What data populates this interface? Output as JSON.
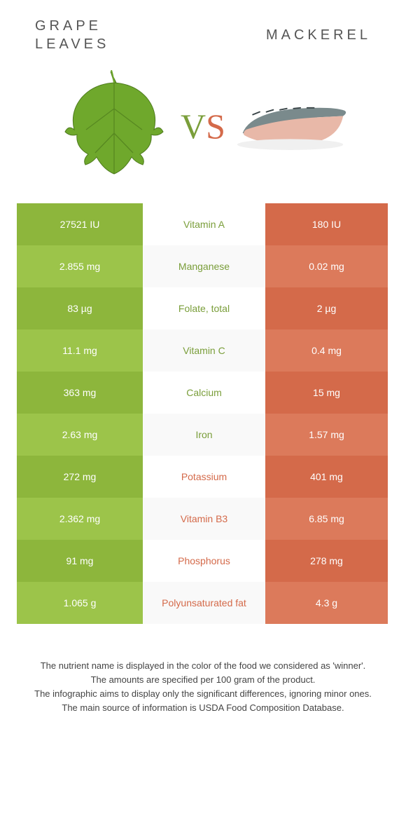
{
  "left_food": "Grape leaves",
  "right_food": "Mackerel",
  "vs_v": "V",
  "vs_s": "S",
  "colors": {
    "left_primary": "#8db63c",
    "left_alt": "#9cc44a",
    "right_primary": "#d46a4a",
    "right_alt": "#dc7a5b",
    "mid_text_left": "#7a9e3a",
    "mid_text_right": "#d46a4a"
  },
  "rows": [
    {
      "nutrient": "Vitamin A",
      "left": "27521 IU",
      "right": "180 IU",
      "winner": "left"
    },
    {
      "nutrient": "Manganese",
      "left": "2.855 mg",
      "right": "0.02 mg",
      "winner": "left"
    },
    {
      "nutrient": "Folate, total",
      "left": "83 µg",
      "right": "2 µg",
      "winner": "left"
    },
    {
      "nutrient": "Vitamin C",
      "left": "11.1 mg",
      "right": "0.4 mg",
      "winner": "left"
    },
    {
      "nutrient": "Calcium",
      "left": "363 mg",
      "right": "15 mg",
      "winner": "left"
    },
    {
      "nutrient": "Iron",
      "left": "2.63 mg",
      "right": "1.57 mg",
      "winner": "left"
    },
    {
      "nutrient": "Potassium",
      "left": "272 mg",
      "right": "401 mg",
      "winner": "right"
    },
    {
      "nutrient": "Vitamin B3",
      "left": "2.362 mg",
      "right": "6.85 mg",
      "winner": "right"
    },
    {
      "nutrient": "Phosphorus",
      "left": "91 mg",
      "right": "278 mg",
      "winner": "right"
    },
    {
      "nutrient": "Polyunsaturated fat",
      "left": "1.065 g",
      "right": "4.3 g",
      "winner": "right"
    }
  ],
  "footnotes": [
    "The nutrient name is displayed in the color of the food we considered as 'winner'.",
    "The amounts are specified per 100 gram of the product.",
    "The infographic aims to display only the significant differences, ignoring minor ones.",
    "The main source of information is USDA Food Composition Database."
  ]
}
